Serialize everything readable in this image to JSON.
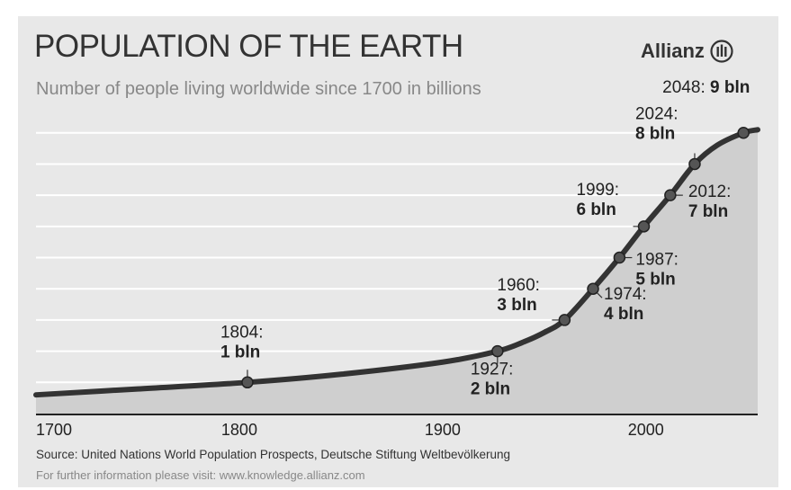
{
  "header": {
    "title": "POPULATION OF THE EARTH",
    "subtitle": "Number of people living worldwide since 1700 in billions",
    "brand": "Allianz"
  },
  "footer": {
    "source": "Source: United Nations World Population Prospects, Deutsche Stiftung Weltbevölkerung",
    "info": "For further information please visit: www.knowledge.allianz.com"
  },
  "colors": {
    "line": "#333333",
    "fill": "#cfcfcf",
    "background": "#e8e8e8",
    "grid": "#ffffff"
  },
  "chart_data": {
    "type": "area",
    "title": "POPULATION OF THE EARTH",
    "subtitle": "Number of people living worldwide since 1700 in billions",
    "xlabel": "",
    "ylabel": "",
    "xlim": [
      1700,
      2055
    ],
    "ylim": [
      0,
      9.8
    ],
    "xticks": [
      1700,
      1800,
      1900,
      2000
    ],
    "grid": true,
    "legend": "none",
    "series": [
      {
        "x": [
          1700,
          1750,
          1804,
          1850,
          1900,
          1927,
          1940,
          1950,
          1960,
          1974,
          1987,
          1999,
          2012,
          2024,
          2035,
          2048,
          2055
        ],
        "values": [
          0.6,
          0.79,
          1,
          1.26,
          1.65,
          2,
          2.3,
          2.6,
          3,
          4,
          5,
          6,
          7,
          8,
          8.6,
          9,
          9.1
        ]
      }
    ],
    "annotations": [
      {
        "x": 1804,
        "y": 1,
        "year": "1804:",
        "value": "1 bln"
      },
      {
        "x": 1927,
        "y": 2,
        "year": "1927:",
        "value": "2 bln"
      },
      {
        "x": 1960,
        "y": 3,
        "year": "1960:",
        "value": "3 bln"
      },
      {
        "x": 1974,
        "y": 4,
        "year": "1974:",
        "value": "4 bln"
      },
      {
        "x": 1987,
        "y": 5,
        "year": "1987:",
        "value": "5 bln"
      },
      {
        "x": 1999,
        "y": 6,
        "year": "1999:",
        "value": "6 bln"
      },
      {
        "x": 2012,
        "y": 7,
        "year": "2012:",
        "value": "7 bln"
      },
      {
        "x": 2024,
        "y": 8,
        "year": "2024:",
        "value": "8 bln"
      },
      {
        "x": 2048,
        "y": 9,
        "year": "2048:",
        "value": "9 bln"
      }
    ]
  }
}
